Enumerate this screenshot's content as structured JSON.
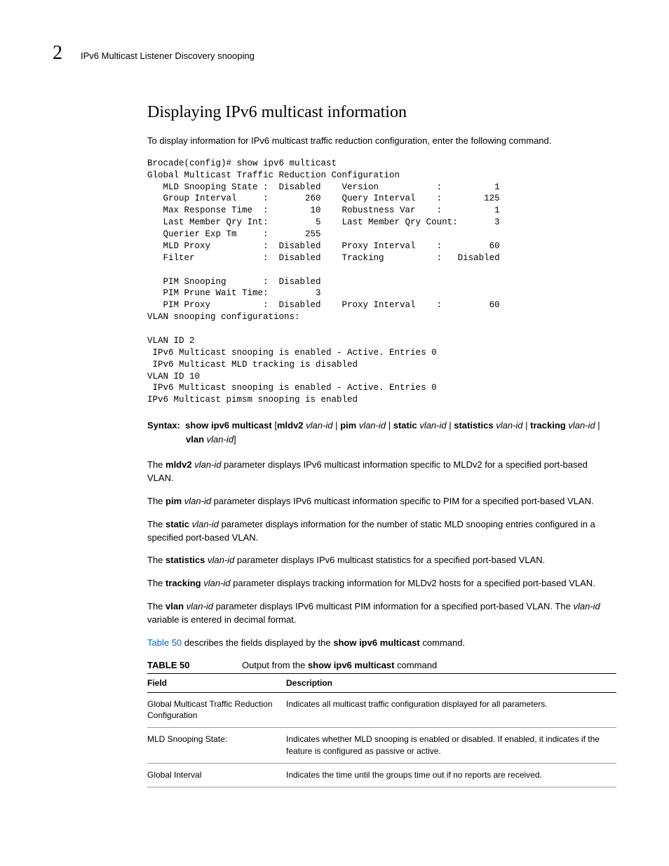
{
  "header": {
    "chapter_number": "2",
    "breadcrumb": "IPv6 Multicast Listener Discovery snooping"
  },
  "title": "Displaying IPv6 multicast information",
  "intro": "To display information for IPv6 multicast traffic reduction configuration, enter the following command.",
  "code": {
    "prompt": "Brocade(config)# show ipv6 multicast",
    "heading": "Global Multicast Traffic Reduction Configuration",
    "rows": [
      {
        "l1": "MLD Snooping State :",
        "v1": "Disabled",
        "l2": "Version",
        "sep": ":",
        "v2": "1"
      },
      {
        "l1": "Group Interval     :",
        "v1": "260",
        "l2": "Query Interval",
        "sep": ":",
        "v2": "125"
      },
      {
        "l1": "Max Response Time  :",
        "v1": "10",
        "l2": "Robustness Var",
        "sep": ":",
        "v2": "1"
      },
      {
        "l1": "Last Member Qry Int:",
        "v1": "5",
        "l2": "Last Member Qry Count:",
        "sep": "",
        "v2": "3"
      },
      {
        "l1": "Querier Exp Tm     :",
        "v1": "255",
        "l2": "",
        "sep": "",
        "v2": ""
      },
      {
        "l1": "MLD Proxy          :",
        "v1": "Disabled",
        "l2": "Proxy Interval",
        "sep": ":",
        "v2": "60"
      },
      {
        "l1": "Filter             :",
        "v1": "Disabled",
        "l2": "Tracking",
        "sep": ":",
        "v2": "Disabled"
      }
    ],
    "rows2": [
      {
        "l1": "PIM Snooping       :",
        "v1": "Disabled",
        "l2": "",
        "sep": "",
        "v2": ""
      },
      {
        "l1": "PIM Prune Wait Time:",
        "v1": "3",
        "l2": "",
        "sep": "",
        "v2": ""
      },
      {
        "l1": "PIM Proxy          :",
        "v1": "Disabled",
        "l2": "Proxy Interval",
        "sep": ":",
        "v2": "60"
      }
    ],
    "vlan_heading": "VLAN snooping configurations:",
    "vlan_lines": [
      "VLAN ID 2",
      " IPv6 Multicast snooping is enabled - Active. Entries 0",
      " IPv6 Multicast MLD tracking is disabled",
      "VLAN ID 10",
      " IPv6 Multicast snooping is enabled - Active. Entries 0",
      "IPv6 Multicast pimsm snooping is enabled"
    ]
  },
  "syntax": {
    "label": "Syntax:",
    "cmd": "show ipv6 multicast",
    "opts": [
      {
        "k": "mldv2",
        "v": "vlan-id"
      },
      {
        "k": "pim",
        "v": "vlan-id"
      },
      {
        "k": "static",
        "v": "vlan-id"
      },
      {
        "k": "statistics",
        "v": "vlan-id"
      },
      {
        "k": "tracking",
        "v": "vlan-id"
      },
      {
        "k": "vlan",
        "v": "vlan-id"
      }
    ]
  },
  "paragraphs": [
    {
      "b": "mldv2",
      "i": "vlan-id",
      "t": " parameter displays IPv6 multicast information specific to MLDv2 for a specified port-based VLAN."
    },
    {
      "b": "pim",
      "i": "vlan-id",
      "t": " parameter displays IPv6 multicast information specific to PIM for a specified port-based VLAN."
    },
    {
      "b": "static",
      "i": "vlan-id",
      "t": " parameter displays information for the number of static MLD snooping entries configured in a specified port-based VLAN."
    },
    {
      "b": "statistics",
      "i": "vlan-id",
      "t": " parameter displays IPv6 multicast statistics for a specified port-based VLAN."
    },
    {
      "b": "tracking",
      "i": "vlan-id",
      "t": " parameter displays tracking information for MLDv2 hosts for a specified port-based VLAN."
    },
    {
      "b": "vlan",
      "i": "vlan-id",
      "t": " parameter displays IPv6 multicast PIM information for a specified port-based VLAN. The ",
      "i2": "vlan-id",
      "t2": " variable is entered in decimal format."
    }
  ],
  "table_ref": {
    "link": "Table 50",
    "rest": " describes the fields displayed by the ",
    "cmd": "show ipv6 multicast",
    "end": " command."
  },
  "table": {
    "number": "TABLE 50",
    "caption_pre": "Output from the ",
    "caption_cmd": "show ipv6 multicast",
    "caption_post": " command",
    "headers": {
      "field": "Field",
      "desc": "Description"
    },
    "rows": [
      {
        "field": "Global Multicast Traffic Reduction Configuration",
        "desc": "Indicates all multicast traffic configuration displayed for all parameters."
      },
      {
        "field": "MLD Snooping State:",
        "desc": "Indicates whether MLD snooping is enabled or disabled. If enabled, it indicates if the feature is configured as passive or active."
      },
      {
        "field": "Global Interval",
        "desc": "Indicates the time until the groups time out if no reports are received."
      }
    ]
  },
  "colors": {
    "link": "#0066cc",
    "text": "#000000",
    "border_dark": "#000000",
    "border_light": "#999999",
    "background": "#ffffff"
  },
  "fonts": {
    "body": "Arial",
    "heading": "Georgia",
    "mono": "Courier New",
    "body_size_pt": 10,
    "heading_size_pt": 18,
    "mono_size_pt": 9.5
  }
}
